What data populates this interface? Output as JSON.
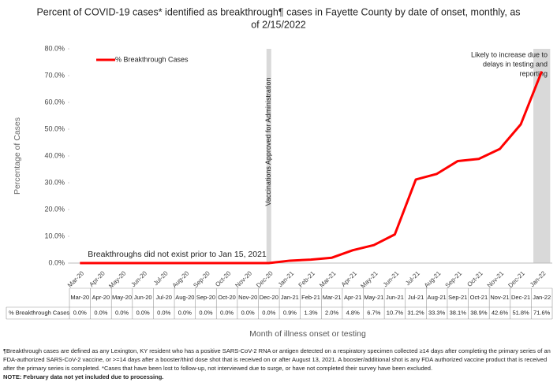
{
  "chart_data": {
    "type": "line",
    "title": [
      "Percent of COVID-19 cases* identified as breakthrough¶ cases in Fayette County by date of onset, monthly, as",
      "of 2/15/2022"
    ],
    "y_label": "Percentage of Cases",
    "x_label": "Month of illness onset or testing",
    "categories": [
      "Mar-20",
      "Apr-20",
      "May-20",
      "Jun-20",
      "Jul-20",
      "Aug-20",
      "Sep-20",
      "Oct-20",
      "Nov-20",
      "Dec-20",
      "Jan-21",
      "Feb-21",
      "Mar-21",
      "Apr-21",
      "May-21",
      "Jun-21",
      "Jul-21",
      "Aug-21",
      "Sep-21",
      "Oct-21",
      "Nov-21",
      "Dec-21",
      "Jan-22"
    ],
    "series": [
      {
        "name": "% Breakthrough Cases",
        "color": "#ff0000",
        "values": [
          0,
          0,
          0,
          0,
          0,
          0,
          0,
          0,
          0,
          0,
          0.9,
          1.3,
          2.0,
          4.8,
          6.7,
          10.7,
          31.2,
          33.3,
          38.1,
          38.9,
          42.6,
          51.8,
          71.6
        ],
        "value_labels": [
          "0.0%",
          "0.0%",
          "0.0%",
          "0.0%",
          "0.0%",
          "0.0%",
          "0.0%",
          "0.0%",
          "0.0%",
          "0.0%",
          "0.9%",
          "1.3%",
          "2.0%",
          "4.8%",
          "6.7%",
          "10.7%",
          "31.2%",
          "33.3%",
          "38.1%",
          "38.9%",
          "42.6%",
          "51.8%",
          "71.6%"
        ]
      }
    ],
    "ylim": [
      0,
      80
    ],
    "yticks": [
      {
        "value": 0,
        "label": "0.0%"
      },
      {
        "value": 10,
        "label": "10.0%"
      },
      {
        "value": 20,
        "label": "20.0%"
      },
      {
        "value": 30,
        "label": "30.0%"
      },
      {
        "value": 40,
        "label": "40.0%"
      },
      {
        "value": 50,
        "label": "50.0%"
      },
      {
        "value": 60,
        "label": "60.0%"
      },
      {
        "value": 70,
        "label": "70.0%"
      },
      {
        "value": 80,
        "label": "80.0%"
      }
    ],
    "legend": "top-left",
    "annotations": [
      {
        "category": "Dec-20",
        "text": "Vaccinations Approved for Administration"
      },
      {
        "category": "Jan-22",
        "text": [
          "Likely to increase due to",
          "delays in testing and",
          "reporting"
        ]
      },
      {
        "category": "Mar-20",
        "text": "Breakthroughs did not exist prior to Jan 15, 2021"
      }
    ],
    "footnotes": [
      "¶Breakthrough cases are defined as any Lexington, KY resident who has a positive SARS-CoV-2 RNA or antigen detected on a respiratory specimen collected ≥14 days after completing the primary series of an",
      "FDA-authorized SARS-CoV-2 vaccine, or >=14 days after a booster/third dose shot that is received on or after August 13, 2021.  A booster/additional shot is any FDA authorized vaccine product that is received",
      "after the primary series is completed.  *Cases that have been lost to follow-up, not interviewed due to surge, or have not completed their survey have been excluded.",
      "NOTE: February data not yet included due to processing."
    ]
  }
}
